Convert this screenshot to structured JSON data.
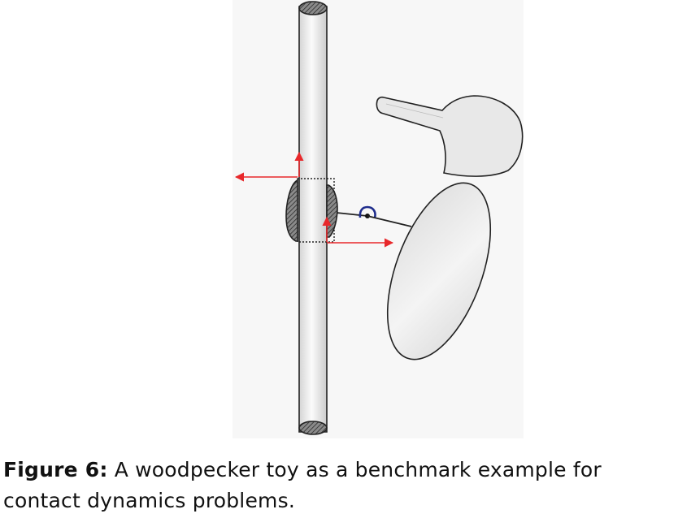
{
  "figure": {
    "label": "Figure 6:",
    "caption": "A woodpecker toy as a benchmark example for contact dynamics problems.",
    "elements": [
      "pole",
      "sleeve",
      "spring",
      "woodpecker-beak",
      "woodpecker-head",
      "woodpecker-body",
      "force-arrows"
    ],
    "colors": {
      "arrow": "#e8282b",
      "spring": "#1f2d8c",
      "outline": "#222222",
      "body_fill": "#e6e6e6",
      "panel": "#f7f7f7"
    }
  }
}
